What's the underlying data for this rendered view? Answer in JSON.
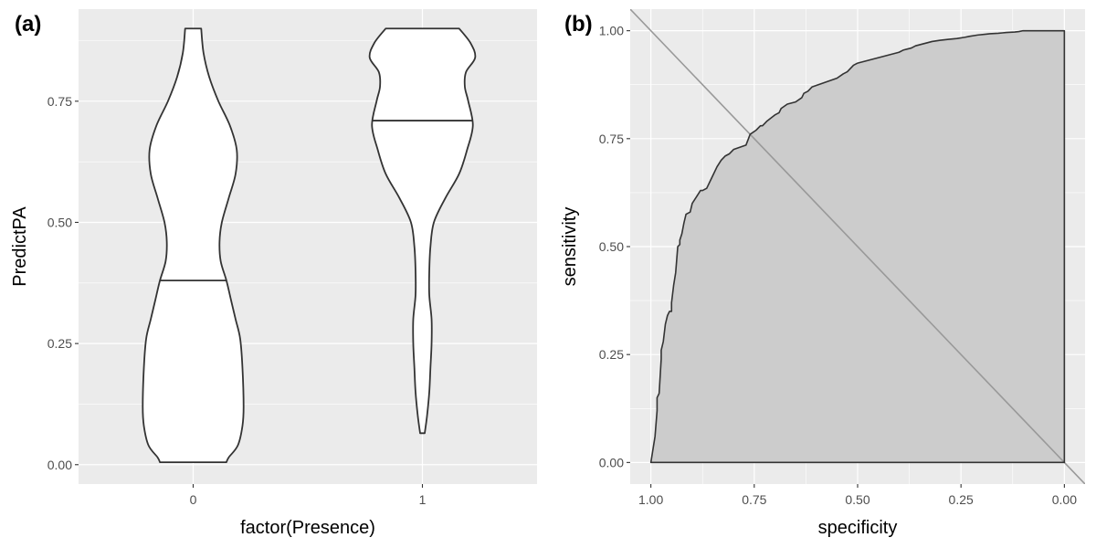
{
  "colors": {
    "panel_bg": "#ebebeb",
    "grid": "#ffffff",
    "tick": "#333333",
    "tick_text": "#4d4d4d",
    "outline": "#333333",
    "violin_fill": "#ffffff",
    "roc_fill": "#cccccc",
    "diagonal": "#999999"
  },
  "chart_data": [
    {
      "type": "violin",
      "panel_tag": "(a)",
      "xlabel": "factor(Presence)",
      "ylabel": "PredictPA",
      "categories": [
        "0",
        "1"
      ],
      "ylim": [
        -0.04,
        0.94
      ],
      "yticks": [
        0.0,
        0.25,
        0.5,
        0.75
      ],
      "ytick_labels": [
        "0.00",
        "0.25",
        "0.50",
        "0.75"
      ],
      "grid": true,
      "groups": [
        {
          "category": "0",
          "median": 0.38,
          "profile": [
            [
              0.005,
              0.145
            ],
            [
              0.015,
              0.155
            ],
            [
              0.04,
              0.195
            ],
            [
              0.08,
              0.215
            ],
            [
              0.12,
              0.22
            ],
            [
              0.2,
              0.215
            ],
            [
              0.26,
              0.205
            ],
            [
              0.3,
              0.185
            ],
            [
              0.34,
              0.165
            ],
            [
              0.38,
              0.145
            ],
            [
              0.42,
              0.12
            ],
            [
              0.46,
              0.115
            ],
            [
              0.5,
              0.125
            ],
            [
              0.55,
              0.155
            ],
            [
              0.6,
              0.185
            ],
            [
              0.65,
              0.19
            ],
            [
              0.7,
              0.16
            ],
            [
              0.75,
              0.11
            ],
            [
              0.8,
              0.07
            ],
            [
              0.85,
              0.045
            ],
            [
              0.9,
              0.035
            ]
          ]
        },
        {
          "category": "1",
          "median": 0.71,
          "profile": [
            [
              0.065,
              0.01
            ],
            [
              0.1,
              0.02
            ],
            [
              0.15,
              0.03
            ],
            [
              0.2,
              0.035
            ],
            [
              0.25,
              0.04
            ],
            [
              0.3,
              0.04
            ],
            [
              0.35,
              0.03
            ],
            [
              0.4,
              0.03
            ],
            [
              0.45,
              0.035
            ],
            [
              0.5,
              0.05
            ],
            [
              0.55,
              0.1
            ],
            [
              0.6,
              0.16
            ],
            [
              0.65,
              0.195
            ],
            [
              0.7,
              0.22
            ],
            [
              0.75,
              0.2
            ],
            [
              0.78,
              0.185
            ],
            [
              0.81,
              0.19
            ],
            [
              0.84,
              0.23
            ],
            [
              0.87,
              0.21
            ],
            [
              0.9,
              0.16
            ]
          ]
        }
      ]
    },
    {
      "type": "line",
      "subtype": "roc",
      "panel_tag": "(b)",
      "xlabel": "specificity",
      "ylabel": "sensitivity",
      "xlim": [
        1.05,
        -0.05
      ],
      "ylim": [
        -0.05,
        1.05
      ],
      "xticks": [
        1.0,
        0.75,
        0.5,
        0.25,
        0.0
      ],
      "xtick_labels": [
        "1.00",
        "0.75",
        "0.50",
        "0.25",
        "0.00"
      ],
      "yticks": [
        0.0,
        0.25,
        0.5,
        0.75,
        1.0
      ],
      "ytick_labels": [
        "0.00",
        "0.25",
        "0.50",
        "0.75",
        "1.00"
      ],
      "grid": true,
      "diagonal": true,
      "roc_points": {
        "specificity": [
          1.0,
          0.99,
          0.985,
          0.985,
          0.98,
          0.975,
          0.975,
          0.97,
          0.965,
          0.96,
          0.955,
          0.95,
          0.95,
          0.945,
          0.94,
          0.935,
          0.93,
          0.93,
          0.925,
          0.92,
          0.915,
          0.905,
          0.9,
          0.89,
          0.88,
          0.875,
          0.865,
          0.86,
          0.855,
          0.85,
          0.84,
          0.83,
          0.82,
          0.81,
          0.8,
          0.785,
          0.77,
          0.76,
          0.745,
          0.735,
          0.73,
          0.72,
          0.7,
          0.69,
          0.685,
          0.67,
          0.65,
          0.635,
          0.63,
          0.62,
          0.61,
          0.595,
          0.58,
          0.565,
          0.55,
          0.535,
          0.525,
          0.52,
          0.51,
          0.5,
          0.48,
          0.46,
          0.44,
          0.42,
          0.4,
          0.39,
          0.37,
          0.36,
          0.34,
          0.32,
          0.3,
          0.28,
          0.26,
          0.24,
          0.23,
          0.21,
          0.19,
          0.18,
          0.16,
          0.15,
          0.14,
          0.12,
          0.11,
          0.1,
          0.09,
          0.08,
          0.05,
          0.02,
          0.0,
          0.0,
          1.0
        ],
        "sensitivity": [
          0.0,
          0.06,
          0.12,
          0.15,
          0.16,
          0.24,
          0.26,
          0.28,
          0.32,
          0.34,
          0.35,
          0.35,
          0.37,
          0.41,
          0.44,
          0.5,
          0.505,
          0.515,
          0.53,
          0.555,
          0.575,
          0.58,
          0.6,
          0.615,
          0.63,
          0.63,
          0.635,
          0.645,
          0.655,
          0.665,
          0.685,
          0.7,
          0.71,
          0.715,
          0.725,
          0.73,
          0.735,
          0.76,
          0.77,
          0.78,
          0.78,
          0.79,
          0.805,
          0.81,
          0.82,
          0.83,
          0.835,
          0.845,
          0.855,
          0.86,
          0.87,
          0.875,
          0.88,
          0.885,
          0.89,
          0.9,
          0.905,
          0.91,
          0.92,
          0.925,
          0.93,
          0.935,
          0.94,
          0.945,
          0.95,
          0.955,
          0.96,
          0.965,
          0.97,
          0.975,
          0.978,
          0.98,
          0.982,
          0.985,
          0.987,
          0.99,
          0.992,
          0.993,
          0.994,
          0.995,
          0.996,
          0.997,
          0.998,
          1.0,
          1.0,
          1.0,
          1.0,
          1.0,
          1.0,
          0.0,
          0.0
        ]
      }
    }
  ]
}
